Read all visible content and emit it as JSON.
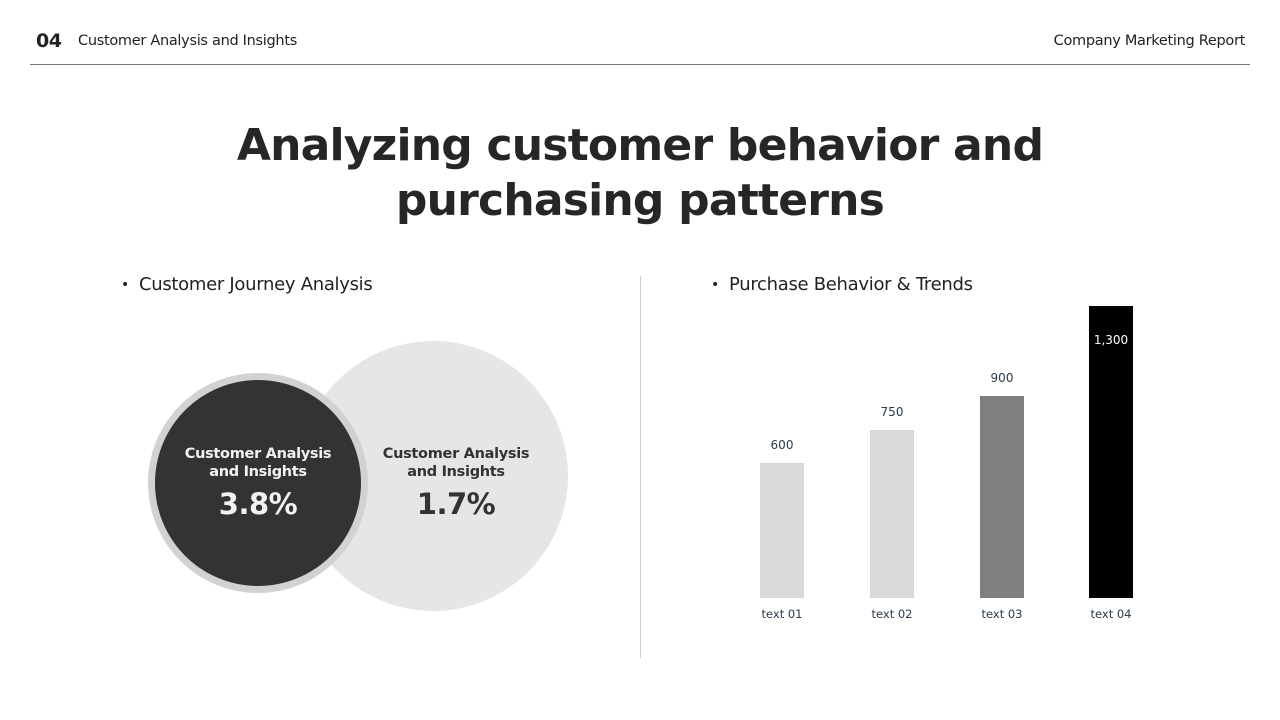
{
  "header": {
    "section_number": "04",
    "section_label": "Customer Analysis and Insights",
    "report_name": "Company Marketing Report"
  },
  "title": {
    "line1": "Analyzing customer behavior and",
    "line2": "purchasing patterns"
  },
  "left_panel": {
    "heading": "Customer Journey Analysis",
    "bullet": "•",
    "dark_circle": {
      "label_line1": "Customer Analysis",
      "label_line2": "and Insights",
      "value": "3.8%"
    },
    "light_circle": {
      "label_line1": "Customer Analysis",
      "label_line2": "and Insights",
      "value": "1.7%"
    }
  },
  "right_panel": {
    "heading": "Purchase Behavior & Trends",
    "bullet": "•",
    "bars": [
      {
        "category": "text 01",
        "value_label": "600",
        "color": "#d9d9d9"
      },
      {
        "category": "text 02",
        "value_label": "750",
        "color": "#d9d9d9"
      },
      {
        "category": "text 03",
        "value_label": "900",
        "color": "#7f7f7f"
      },
      {
        "category": "text 04",
        "value_label": "1,300",
        "color": "#000000"
      }
    ]
  },
  "colors": {
    "dark_circle": "#333333",
    "light_circle": "#e6e6e6",
    "text": "#222222"
  },
  "chart_data": [
    {
      "type": "bar",
      "title": "Purchase Behavior & Trends",
      "categories": [
        "text 01",
        "text 02",
        "text 03",
        "text 04"
      ],
      "values": [
        600,
        750,
        900,
        1300
      ],
      "xlabel": "",
      "ylabel": "",
      "grid": false,
      "legend": "none",
      "data_labels": [
        "600",
        "750",
        "900",
        "1,300"
      ]
    },
    {
      "type": "venn",
      "title": "Customer Journey Analysis",
      "sets": [
        {
          "label": "Customer Analysis and Insights",
          "value": 3.8,
          "display": "3.8%"
        },
        {
          "label": "Customer Analysis and Insights",
          "value": 1.7,
          "display": "1.7%"
        }
      ]
    }
  ]
}
